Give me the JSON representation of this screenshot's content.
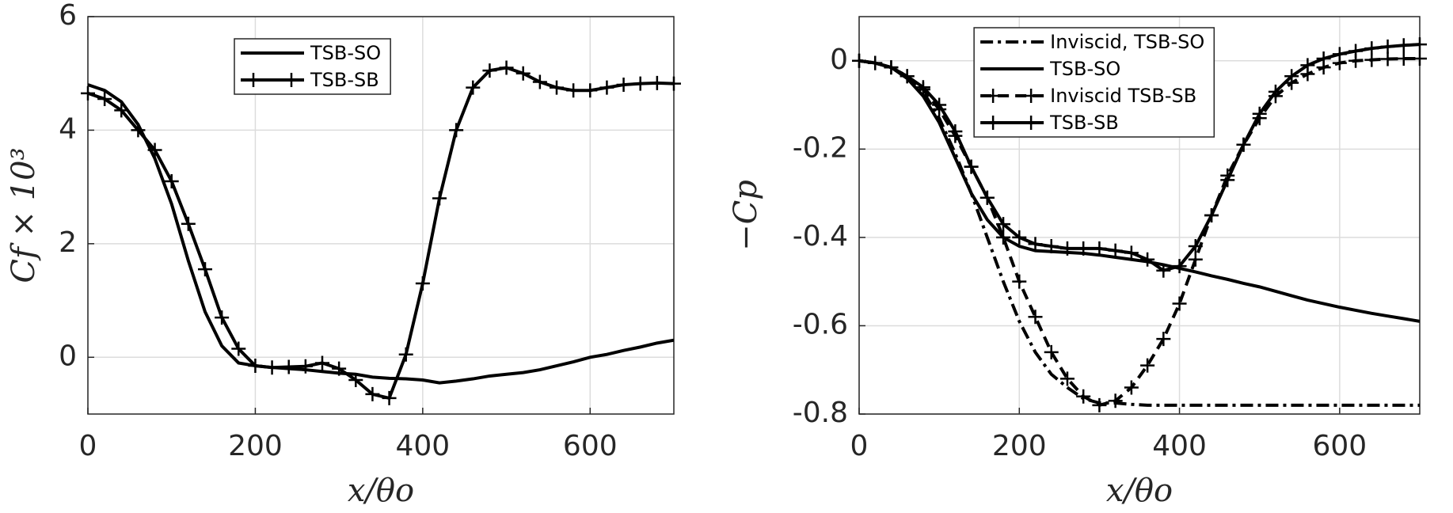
{
  "chart_data": [
    {
      "type": "line",
      "xlabel": "x/θo",
      "ylabel": "Cf × 10³",
      "xlim": [
        0,
        700
      ],
      "ylim": [
        -1,
        6
      ],
      "xticks": [
        0,
        200,
        400,
        600
      ],
      "yticks": [
        0,
        2,
        4,
        6
      ],
      "grid": true,
      "legend": "north",
      "x": [
        0,
        20,
        40,
        60,
        80,
        100,
        120,
        140,
        160,
        180,
        200,
        220,
        240,
        260,
        280,
        300,
        320,
        340,
        360,
        380,
        400,
        420,
        440,
        460,
        480,
        500,
        520,
        540,
        560,
        580,
        600,
        620,
        640,
        660,
        680,
        700
      ],
      "series": [
        {
          "name": "TSB-SO",
          "color": "#000000",
          "style": "solid",
          "marker": null,
          "values": [
            4.8,
            4.7,
            4.5,
            4.1,
            3.5,
            2.7,
            1.7,
            0.8,
            0.2,
            -0.1,
            -0.15,
            -0.18,
            -0.2,
            -0.22,
            -0.25,
            -0.28,
            -0.3,
            -0.35,
            -0.37,
            -0.38,
            -0.4,
            -0.45,
            -0.42,
            -0.38,
            -0.33,
            -0.3,
            -0.27,
            -0.22,
            -0.15,
            -0.08,
            0.0,
            0.05,
            0.12,
            0.18,
            0.25,
            0.3
          ]
        },
        {
          "name": "TSB-SB",
          "color": "#000000",
          "style": "solid",
          "marker": "+",
          "values": [
            4.65,
            4.55,
            4.35,
            4.0,
            3.65,
            3.1,
            2.35,
            1.55,
            0.7,
            0.15,
            -0.15,
            -0.18,
            -0.17,
            -0.16,
            -0.1,
            -0.2,
            -0.4,
            -0.65,
            -0.72,
            0.05,
            1.3,
            2.8,
            4.0,
            4.75,
            5.05,
            5.1,
            5.0,
            4.85,
            4.75,
            4.7,
            4.7,
            4.75,
            4.8,
            4.82,
            4.83,
            4.82
          ]
        }
      ]
    },
    {
      "type": "line",
      "xlabel": "x/θo",
      "ylabel": "−Cp",
      "xlim": [
        0,
        700
      ],
      "ylim": [
        -0.8,
        0.1
      ],
      "xticks": [
        0,
        200,
        400,
        600
      ],
      "yticks": [
        -0.8,
        -0.6,
        -0.4,
        -0.2,
        0
      ],
      "grid": true,
      "legend": "northwest",
      "x": [
        0,
        20,
        40,
        60,
        80,
        100,
        120,
        140,
        160,
        180,
        200,
        220,
        240,
        260,
        280,
        300,
        320,
        340,
        360,
        380,
        400,
        420,
        440,
        460,
        480,
        500,
        520,
        540,
        560,
        580,
        600,
        620,
        640,
        660,
        680,
        700
      ],
      "series": [
        {
          "name": "Inviscid, TSB-SO",
          "color": "#000000",
          "style": "dashdot",
          "marker": null,
          "values": [
            0,
            -0.005,
            -0.015,
            -0.035,
            -0.07,
            -0.13,
            -0.21,
            -0.3,
            -0.4,
            -0.5,
            -0.59,
            -0.66,
            -0.71,
            -0.74,
            -0.765,
            -0.775,
            -0.775,
            -0.778,
            -0.78,
            -0.78,
            -0.78,
            -0.78,
            -0.78,
            -0.78,
            -0.78,
            -0.78,
            -0.78,
            -0.78,
            -0.78,
            -0.78,
            -0.78,
            -0.78,
            -0.78,
            -0.78,
            -0.78,
            -0.78
          ]
        },
        {
          "name": "TSB-SO",
          "color": "#000000",
          "style": "solid",
          "marker": null,
          "values": [
            0,
            -0.005,
            -0.015,
            -0.04,
            -0.08,
            -0.14,
            -0.22,
            -0.3,
            -0.36,
            -0.4,
            -0.42,
            -0.43,
            -0.432,
            -0.434,
            -0.436,
            -0.44,
            -0.445,
            -0.45,
            -0.455,
            -0.462,
            -0.47,
            -0.478,
            -0.487,
            -0.495,
            -0.504,
            -0.512,
            -0.522,
            -0.532,
            -0.542,
            -0.55,
            -0.558,
            -0.565,
            -0.572,
            -0.578,
            -0.584,
            -0.59
          ]
        },
        {
          "name": "Inviscid TSB-SB",
          "color": "#000000",
          "style": "dashed",
          "marker": "+",
          "values": [
            0,
            -0.005,
            -0.015,
            -0.035,
            -0.065,
            -0.11,
            -0.17,
            -0.24,
            -0.31,
            -0.4,
            -0.5,
            -0.58,
            -0.66,
            -0.72,
            -0.76,
            -0.78,
            -0.77,
            -0.74,
            -0.69,
            -0.63,
            -0.55,
            -0.45,
            -0.35,
            -0.26,
            -0.19,
            -0.13,
            -0.08,
            -0.05,
            -0.03,
            -0.015,
            -0.005,
            0,
            0.002,
            0.004,
            0.005,
            0.005
          ]
        },
        {
          "name": "TSB-SB",
          "color": "#000000",
          "style": "solid",
          "marker": "+",
          "values": [
            0,
            -0.005,
            -0.015,
            -0.035,
            -0.06,
            -0.1,
            -0.16,
            -0.24,
            -0.31,
            -0.37,
            -0.4,
            -0.415,
            -0.42,
            -0.425,
            -0.425,
            -0.425,
            -0.43,
            -0.435,
            -0.45,
            -0.475,
            -0.465,
            -0.42,
            -0.35,
            -0.27,
            -0.19,
            -0.12,
            -0.07,
            -0.035,
            -0.01,
            0.005,
            0.015,
            0.022,
            0.028,
            0.032,
            0.035,
            0.037
          ]
        }
      ]
    }
  ]
}
